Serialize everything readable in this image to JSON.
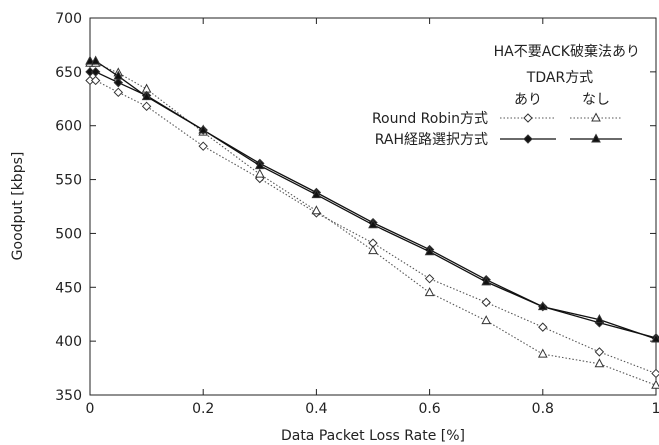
{
  "chart_data": {
    "type": "line",
    "title": "",
    "xlabel": "Data Packet Loss Rate [%]",
    "ylabel": "Goodput [kbps]",
    "xlim": [
      0,
      1
    ],
    "ylim": [
      350,
      700
    ],
    "xticks": [
      "0",
      "0.2",
      "0.4",
      "0.6",
      "0.8",
      "1"
    ],
    "yticks": [
      "350",
      "400",
      "450",
      "500",
      "550",
      "600",
      "650",
      "700"
    ],
    "grid": false,
    "legend_position": "top-right",
    "legend": {
      "header1": "HA不要ACK破棄法あり",
      "header2": "TDAR方式",
      "col_ari": "あり",
      "col_nashi": "なし",
      "row_rr": "Round Robin方式",
      "row_rah": "RAH経路選択方式"
    },
    "x": [
      0,
      0.01,
      0.05,
      0.1,
      0.2,
      0.3,
      0.4,
      0.5,
      0.6,
      0.7,
      0.8,
      0.9,
      1.0
    ],
    "series": [
      {
        "key": "rr_ari",
        "style": "dotted",
        "marker": "diamond-open",
        "values": [
          642,
          642,
          631,
          618,
          581,
          551,
          519,
          491,
          458,
          436,
          413,
          390,
          370
        ]
      },
      {
        "key": "rr_nashi",
        "style": "dotted",
        "marker": "triangle-open",
        "values": [
          658,
          658,
          649,
          634,
          594,
          555,
          521,
          484,
          445,
          419,
          388,
          379,
          359
        ]
      },
      {
        "key": "rah_ari",
        "style": "solid",
        "marker": "diamond-filled",
        "values": [
          650,
          650,
          640,
          628,
          596,
          565,
          538,
          510,
          485,
          457,
          432,
          417,
          403
        ]
      },
      {
        "key": "rah_nashi",
        "style": "solid",
        "marker": "triangle-filled",
        "values": [
          660,
          660,
          646,
          627,
          596,
          563,
          536,
          508,
          483,
          455,
          432,
          420,
          402
        ]
      }
    ]
  }
}
